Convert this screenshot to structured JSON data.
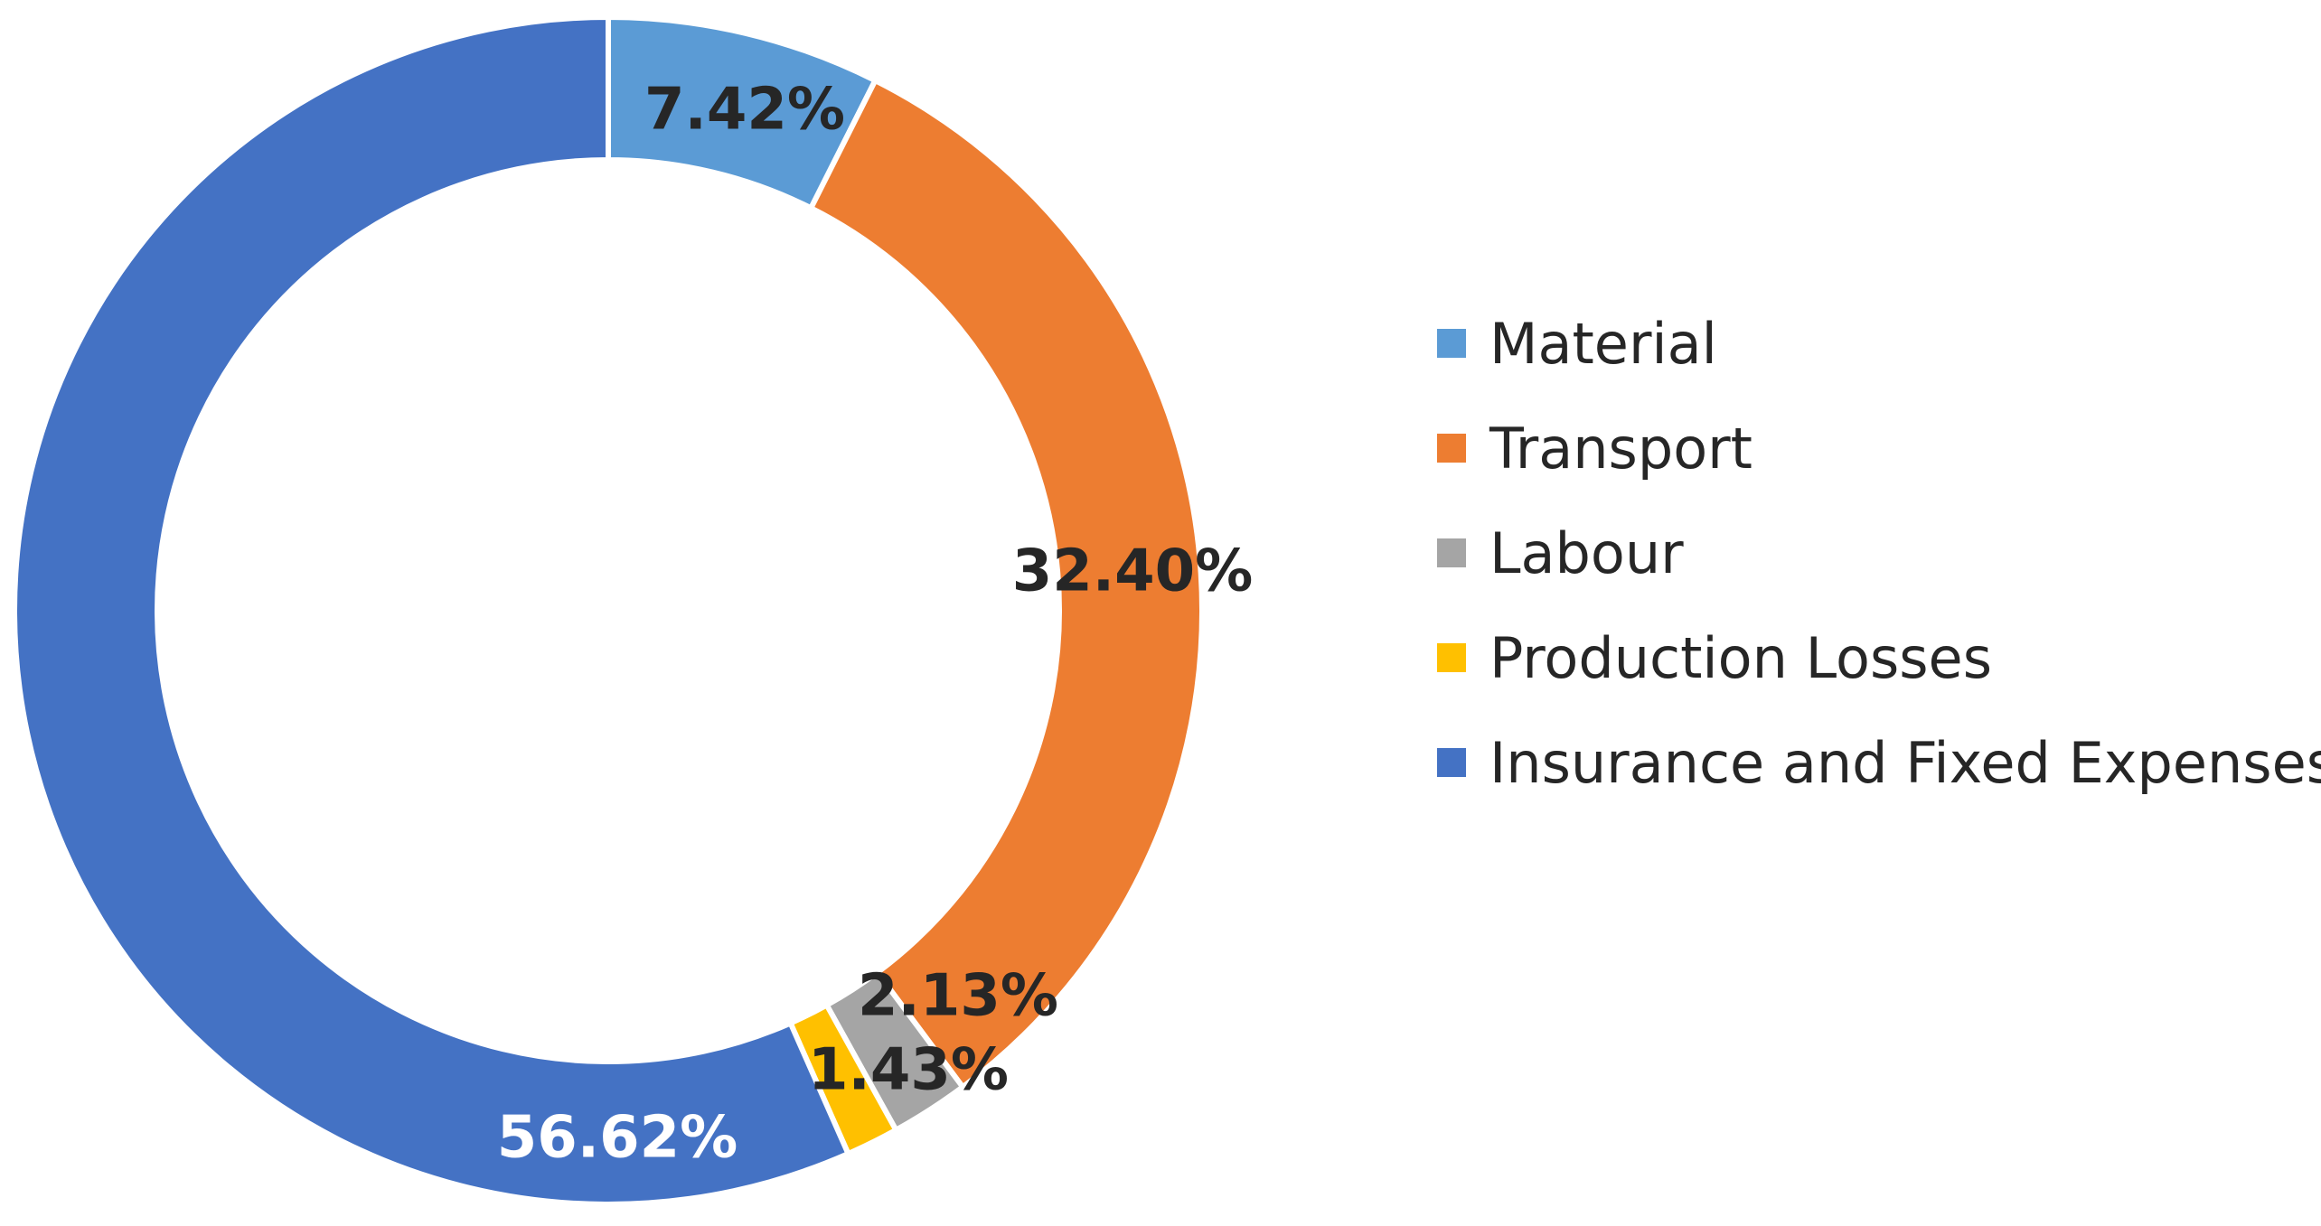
{
  "chart_data": {
    "type": "pie",
    "variant": "donut",
    "title": "",
    "categories": [
      "Material",
      "Transport",
      "Labour",
      "Production Losses",
      "Insurance and Fixed Expenses"
    ],
    "values": [
      7.42,
      32.4,
      2.13,
      1.43,
      56.62
    ],
    "labels": [
      "7.42%",
      "32.40%",
      "2.13%",
      "1.43%",
      "56.62%"
    ],
    "colors": [
      "#5B9BD5",
      "#ED7D31",
      "#A5A5A5",
      "#FFC000",
      "#4472C4"
    ],
    "label_colors": [
      "#262626",
      "#262626",
      "#262626",
      "#262626",
      "#FFFFFF"
    ],
    "legend_position": "right"
  }
}
